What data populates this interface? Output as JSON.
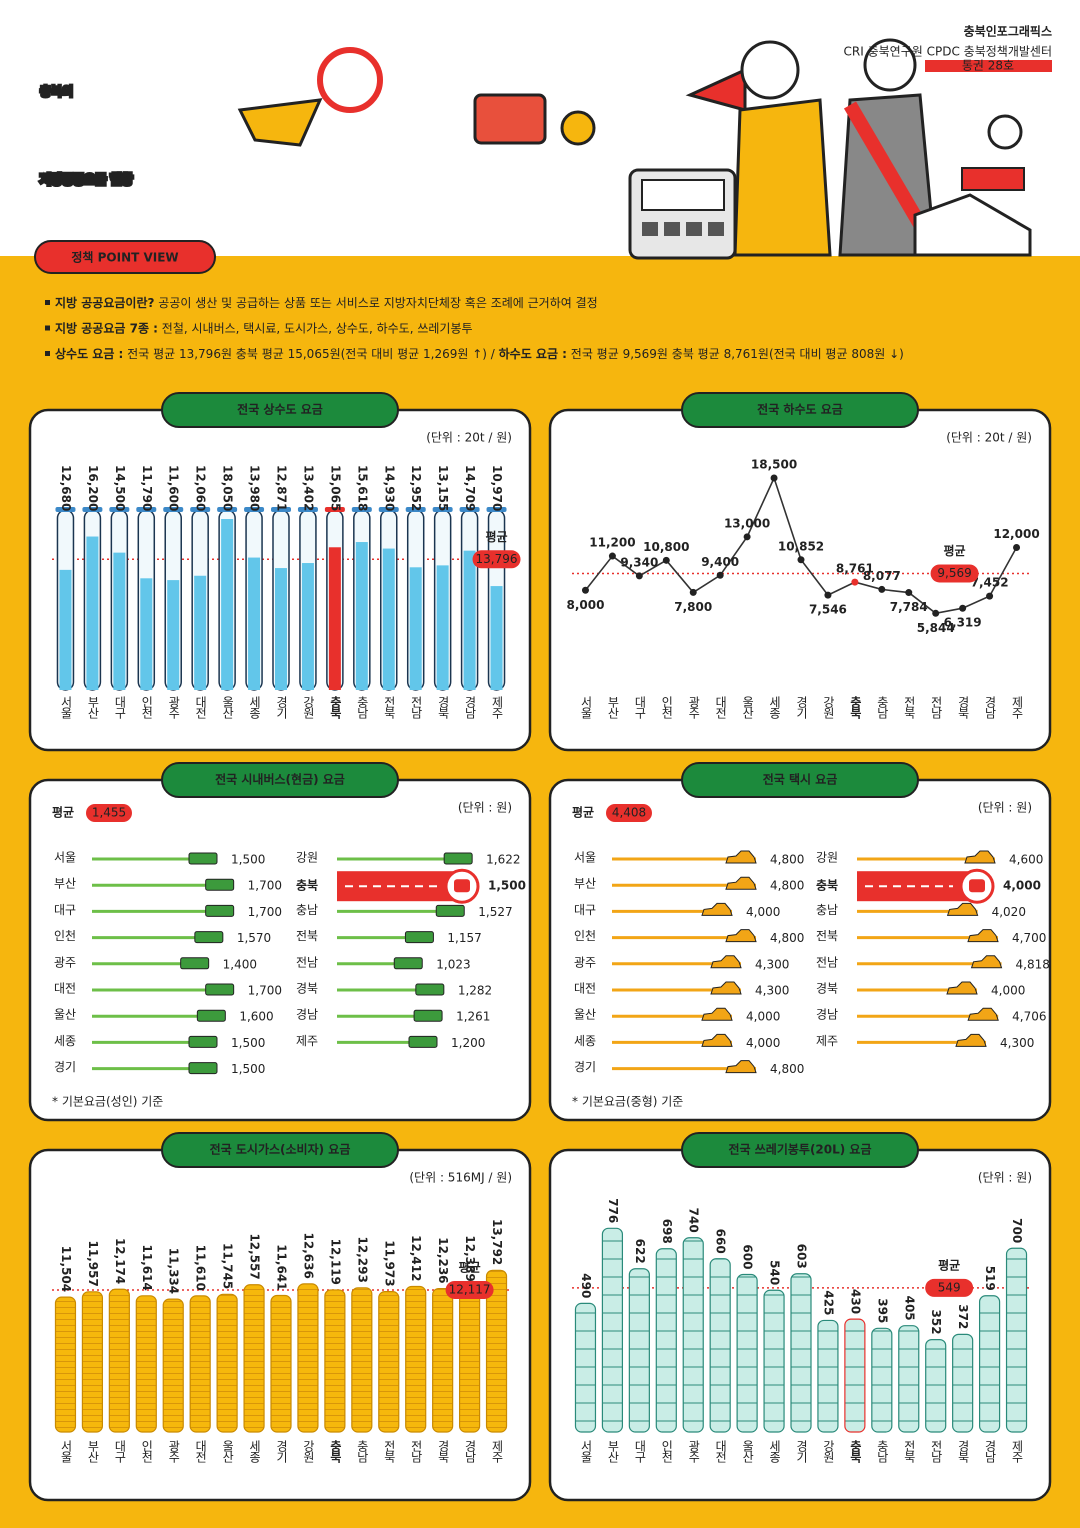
{
  "header": {
    "title_line1": "충북의",
    "title_line2": "지방공공요금 현황",
    "brand": "충북인포그래픽스",
    "org": "CRI 충북연구원 CPDC 충북정책개발센터",
    "issue": "통권 28호",
    "section_tag": "정책 POINT VIEW"
  },
  "intro": [
    [
      "지방 공공요금이란?",
      " 공공이 생산 및 공급하는 상품 또는 서비스로 지방자치단체장 혹은 조례에 근거하여 결정"
    ],
    [
      "지방 공공요금 7종 :",
      " 전철, 시내버스, 택시료, 도시가스, 상수도, 하수도, 쓰레기봉투"
    ],
    [
      "상수도 요금 :",
      " 전국 평균 13,796원 충북 평균 15,065원(전국 대비 평균 1,269원 ↑) / ",
      "하수도 요금 :",
      " 전국 평균 9,569원 충북 평균 8,761원(전국 대비 평균 808원 ↓)"
    ]
  ],
  "chart_data": [
    {
      "type": "bar",
      "style": "tube",
      "title": "전국 상수도 요금",
      "unit": "(단위 : 20t / 원)",
      "categories": [
        "서울",
        "부산",
        "대구",
        "인천",
        "광주",
        "대전",
        "울산",
        "세종",
        "경기",
        "강원",
        "충북",
        "충남",
        "전북",
        "전남",
        "경북",
        "경남",
        "제주"
      ],
      "values": [
        12680,
        16200,
        14500,
        11790,
        11600,
        12060,
        18050,
        13980,
        12871,
        13402,
        15065,
        15618,
        14930,
        12952,
        13155,
        14709,
        10970
      ],
      "value_labels": [
        "12,680",
        "16,200",
        "14,500",
        "11,790",
        "11,600",
        "12,060",
        "18,050",
        "13,980",
        "12,871",
        "13,402",
        "15,065",
        "15,618",
        "14,930",
        "12,952",
        "13,155",
        "14,709",
        "10,970"
      ],
      "color": "#62c6ea",
      "highlight": "충북",
      "highlight_color": "#e8302c",
      "average": {
        "label": "평균",
        "value": 13796,
        "value_label": "13,796"
      },
      "ylim": [
        0,
        19000
      ]
    },
    {
      "type": "line",
      "title": "전국 하수도 요금",
      "unit": "(단위 : 20t / 원)",
      "categories": [
        "서울",
        "부산",
        "대구",
        "인천",
        "광주",
        "대전",
        "울산",
        "세종",
        "경기",
        "강원",
        "충북",
        "충남",
        "전북",
        "전남",
        "경북",
        "경남",
        "제주"
      ],
      "values": [
        8000,
        11200,
        9340,
        10800,
        7800,
        9400,
        13000,
        18500,
        10852,
        7546,
        8761,
        8077,
        7784,
        5844,
        6319,
        7452,
        12000
      ],
      "value_labels": [
        "8,000",
        "11,200",
        "9,340",
        "10,800",
        "7,800",
        "9,400",
        "13,000",
        "18,500",
        "10,852",
        "7,546",
        "8,761",
        "8,077",
        "7,784",
        "5,844",
        "6,319",
        "7,452",
        "12,000"
      ],
      "color": "#333333",
      "highlight": "충북",
      "highlight_color": "#e8302c",
      "average": {
        "label": "평균",
        "value": 9569,
        "value_label": "9,569"
      },
      "ylim": [
        4000,
        20000
      ]
    },
    {
      "type": "bar",
      "horizontal": true,
      "vehicle": "bus",
      "title": "전국 시내버스(현금) 요금",
      "unit": "(단위 : 원)",
      "categories": [
        "서울",
        "부산",
        "대구",
        "인천",
        "광주",
        "대전",
        "울산",
        "세종",
        "경기",
        "강원",
        "충북",
        "충남",
        "전북",
        "전남",
        "경북",
        "경남",
        "제주"
      ],
      "values": [
        1500,
        1700,
        1700,
        1570,
        1400,
        1700,
        1600,
        1500,
        1500,
        1622,
        1500,
        1527,
        1157,
        1023,
        1282,
        1261,
        1200
      ],
      "value_labels": [
        "1,500",
        "1,700",
        "1,700",
        "1,570",
        "1,400",
        "1,700",
        "1,600",
        "1,500",
        "1,500",
        "1,622",
        "1,500",
        "1,527",
        "1,157",
        "1,023",
        "1,282",
        "1,261",
        "1,200"
      ],
      "color": "#6dbf48",
      "highlight": "충북",
      "highlight_color": "#e8302c",
      "average": {
        "label": "평균",
        "value": 1455,
        "value_label": "1,455"
      },
      "note": "* 기본요금(성인) 기준",
      "xlim": [
        0,
        1800
      ]
    },
    {
      "type": "bar",
      "horizontal": true,
      "vehicle": "taxi",
      "title": "전국 택시 요금",
      "unit": "(단위 : 원)",
      "categories": [
        "서울",
        "부산",
        "대구",
        "인천",
        "광주",
        "대전",
        "울산",
        "세종",
        "경기",
        "강원",
        "충북",
        "충남",
        "전북",
        "전남",
        "경북",
        "경남",
        "제주"
      ],
      "values": [
        4800,
        4800,
        4000,
        4800,
        4300,
        4300,
        4000,
        4000,
        4800,
        4600,
        4000,
        4020,
        4700,
        4818,
        4000,
        4706,
        4300
      ],
      "value_labels": [
        "4,800",
        "4,800",
        "4,000",
        "4,800",
        "4,300",
        "4,300",
        "4,000",
        "4,000",
        "4,800",
        "4,600",
        "4,000",
        "4,020",
        "4,700",
        "4,818",
        "4,000",
        "4,706",
        "4,300"
      ],
      "color": "#f2a516",
      "highlight": "충북",
      "highlight_color": "#e8302c",
      "average": {
        "label": "평균",
        "value": 4408,
        "value_label": "4,408"
      },
      "note": "* 기본요금(중형) 기준",
      "xlim": [
        0,
        5000
      ]
    },
    {
      "type": "bar",
      "style": "coin",
      "title": "전국 도시가스(소비자) 요금",
      "unit": "(단위 : 516MJ / 원)",
      "categories": [
        "서울",
        "부산",
        "대구",
        "인천",
        "광주",
        "대전",
        "울산",
        "세종",
        "경기",
        "강원",
        "충북",
        "충남",
        "전북",
        "전남",
        "경북",
        "경남",
        "제주"
      ],
      "values": [
        11504,
        11957,
        12174,
        11614,
        11334,
        11610,
        11745,
        12557,
        11641,
        12636,
        12119,
        12293,
        11973,
        12412,
        12236,
        12389,
        13792
      ],
      "value_labels": [
        "11,504",
        "11,957",
        "12,174",
        "11,614",
        "11,334",
        "11,610",
        "11,745",
        "12,557",
        "11,641",
        "12,636",
        "12,119",
        "12,293",
        "11,973",
        "12,412",
        "12,236",
        "12,389",
        "13,792"
      ],
      "color": "#f6b80c",
      "highlight": "충북",
      "highlight_color": "#e8302c",
      "average": {
        "label": "평균",
        "value": 12117,
        "value_label": "12,117"
      },
      "ylim": [
        0,
        14500
      ]
    },
    {
      "type": "bar",
      "style": "roll",
      "title": "전국 쓰레기봉투(20L) 요금",
      "unit": "(단위 : 원)",
      "categories": [
        "서울",
        "부산",
        "대구",
        "인천",
        "광주",
        "대전",
        "울산",
        "세종",
        "경기",
        "강원",
        "충북",
        "충남",
        "전북",
        "전남",
        "경북",
        "경남",
        "제주"
      ],
      "values": [
        490,
        776,
        622,
        698,
        740,
        660,
        600,
        540,
        603,
        425,
        430,
        395,
        405,
        352,
        372,
        519,
        700
      ],
      "color": "#c9ede6",
      "highlight": "충북",
      "highlight_color": "#e8302c",
      "average": {
        "label": "평균",
        "value": 549
      },
      "ylim": [
        0,
        800
      ]
    }
  ]
}
